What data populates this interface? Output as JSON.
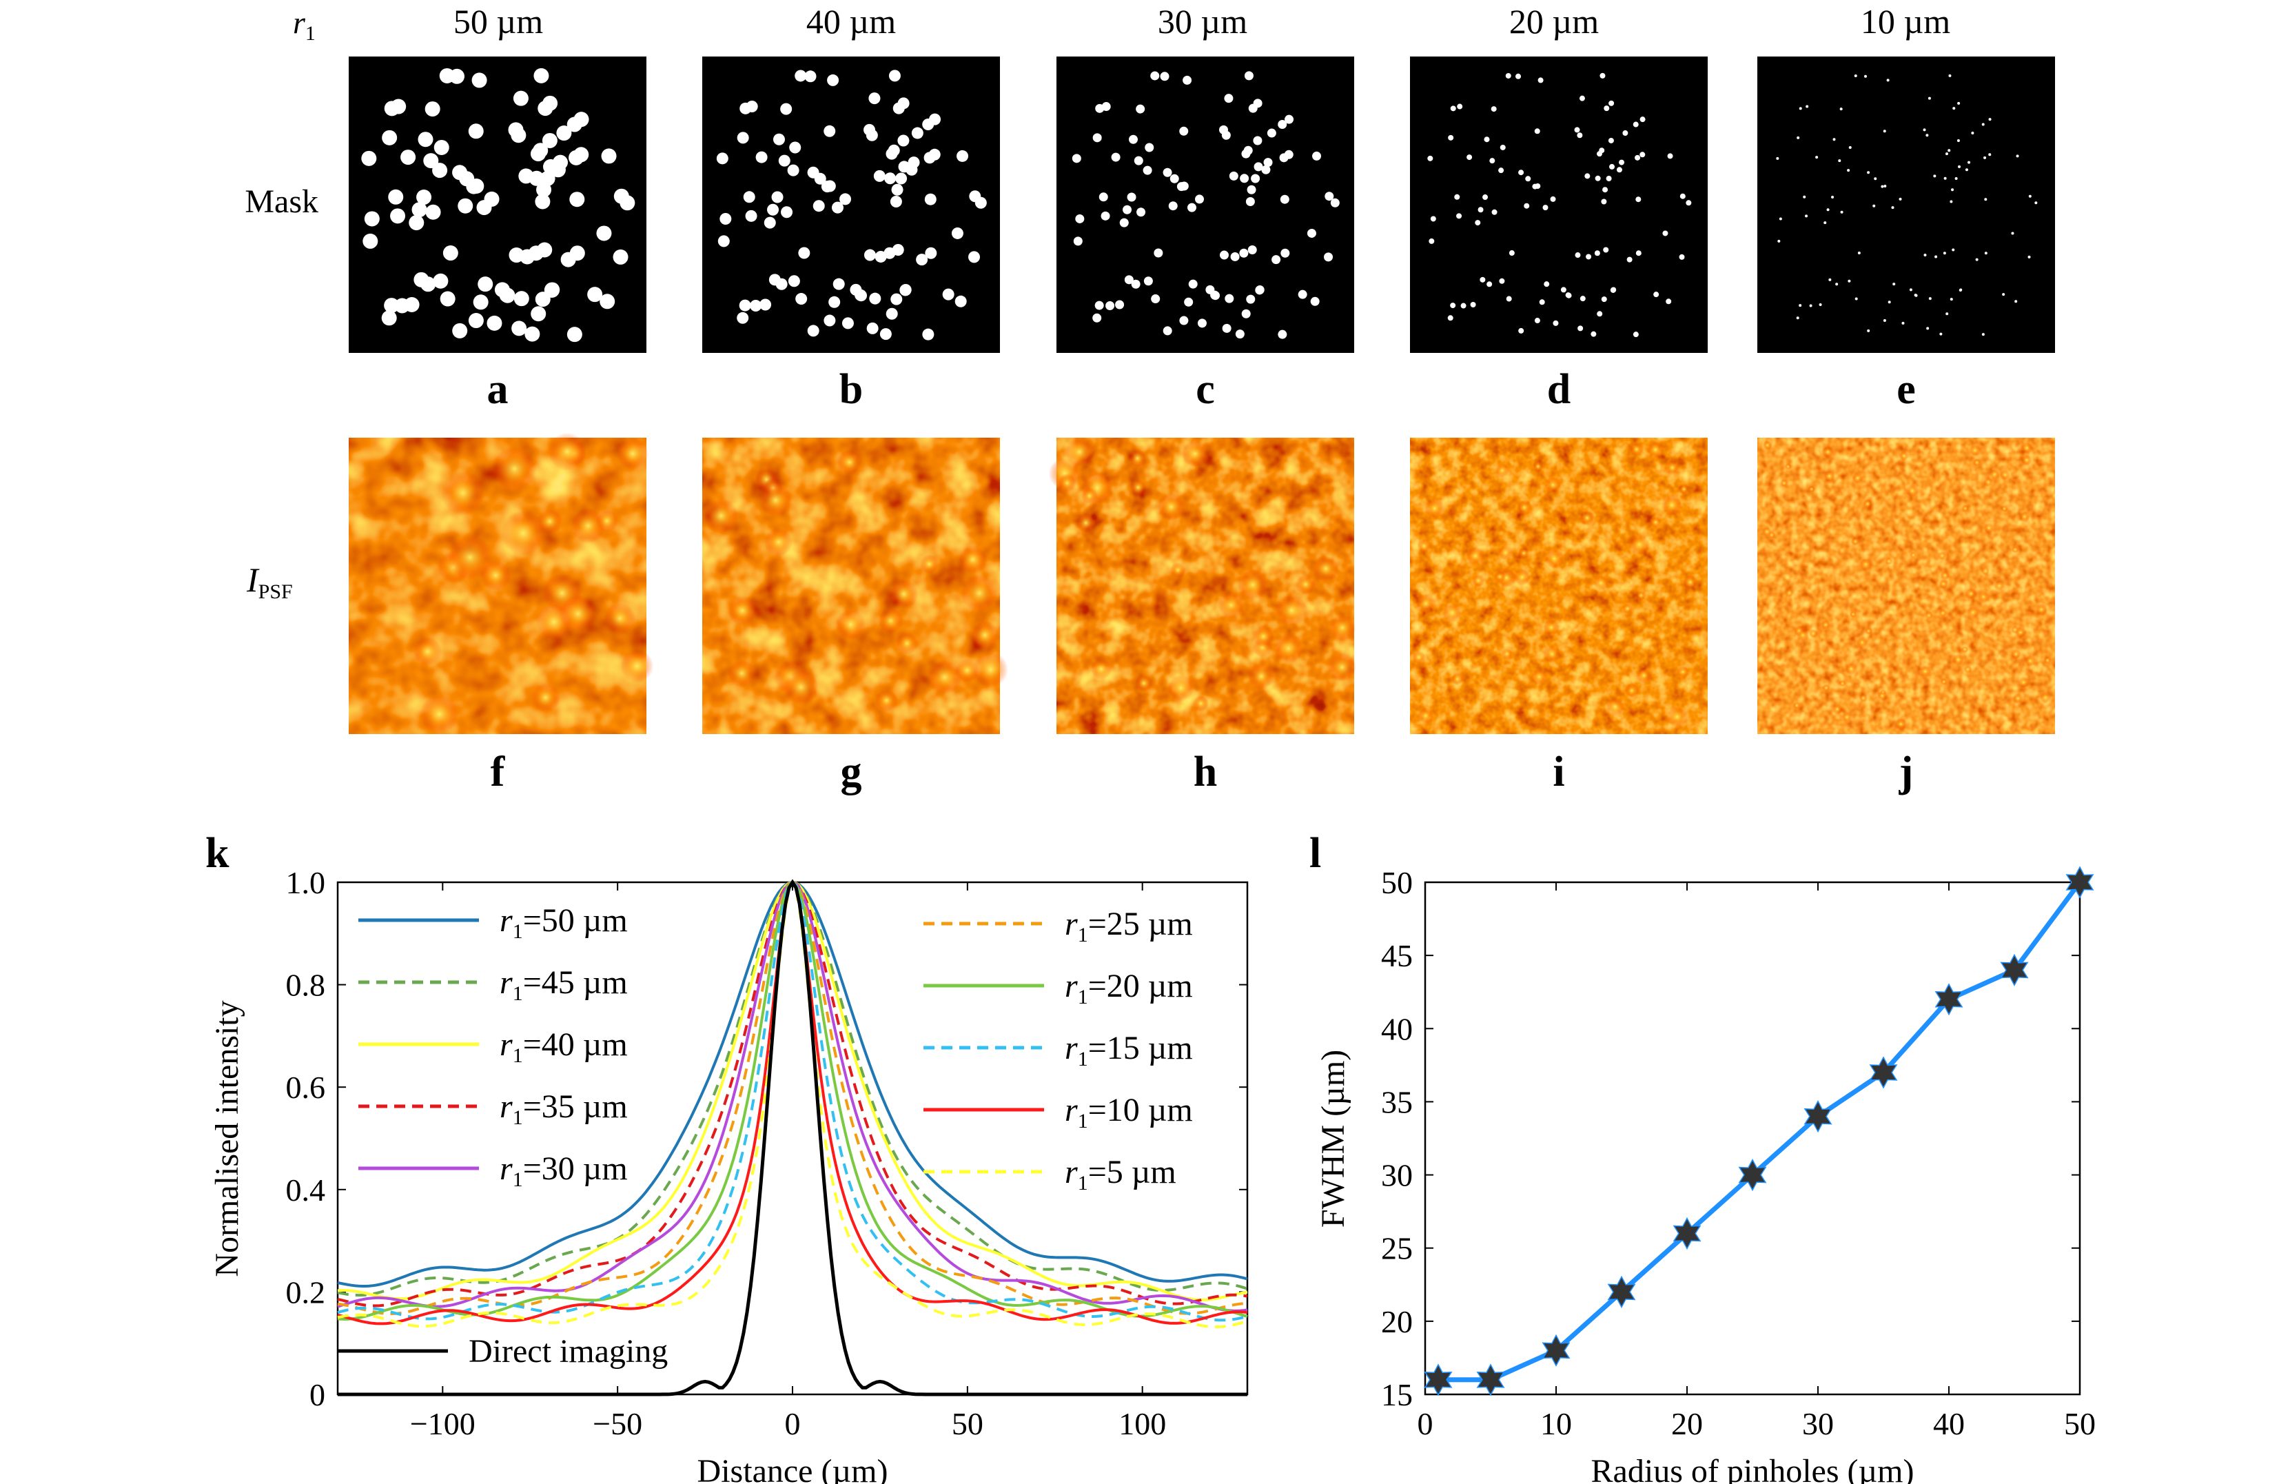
{
  "header": {
    "r_symbol": "r",
    "r_sub": "1"
  },
  "columns": [
    "50 µm",
    "40 µm",
    "30 µm",
    "20 µm",
    "10 µm"
  ],
  "row_labels": {
    "mask": "Mask",
    "psf_main": "I",
    "psf_sub": "PSF"
  },
  "panel_letters": [
    "a",
    "b",
    "c",
    "d",
    "e",
    "f",
    "g",
    "h",
    "i",
    "j",
    "k",
    "l"
  ],
  "colors": {
    "r50": "#1f77b4",
    "r45": "#6aa84f",
    "r40": "#ffff33",
    "r35": "#e31a1c",
    "r30": "#b44bdc",
    "r25": "#f39c12",
    "r20": "#7ac943",
    "r15": "#33c0f0",
    "r10": "#ff1a1a",
    "r5": "#ffff33",
    "direct": "#000000",
    "fwhm_line": "#1e90ff",
    "fwhm_marker": "#333333",
    "psf_low": "#000000",
    "psf_mid": "#c81e00",
    "psf_high": "#fff060"
  },
  "chart_data": [
    {
      "type": "line",
      "panel": "k",
      "xlabel": "Distance (µm)",
      "ylabel": "Normalised intensity",
      "xlim": [
        -130,
        130
      ],
      "ylim": [
        0,
        1.0
      ],
      "xticks": [
        "−100",
        "−50",
        "0",
        "50",
        "100"
      ],
      "xtick_values": [
        -100,
        -50,
        0,
        50,
        100
      ],
      "yticks": [
        "0",
        "0.2",
        "0.4",
        "0.6",
        "0.8",
        "1.0"
      ],
      "ytick_values": [
        0,
        0.2,
        0.4,
        0.6,
        0.8,
        1.0
      ],
      "legend_placement": "top",
      "series": [
        {
          "name": "r1=50 µm",
          "legend_text": "=50 µm",
          "color_key": "r50",
          "dash": "solid",
          "baseline": 0.19,
          "fwhm": 50
        },
        {
          "name": "r1=45 µm",
          "legend_text": "=45 µm",
          "color_key": "r45",
          "dash": "dashed",
          "baseline": 0.18,
          "fwhm": 44
        },
        {
          "name": "r1=40 µm",
          "legend_text": "=40 µm",
          "color_key": "r40",
          "dash": "solid",
          "baseline": 0.17,
          "fwhm": 42
        },
        {
          "name": "r1=35 µm",
          "legend_text": "=35 µm",
          "color_key": "r35",
          "dash": "dashed",
          "baseline": 0.165,
          "fwhm": 37
        },
        {
          "name": "r1=30 µm",
          "legend_text": "=30 µm",
          "color_key": "r30",
          "dash": "solid",
          "baseline": 0.16,
          "fwhm": 34
        },
        {
          "name": "r1=25 µm",
          "legend_text": "=25 µm",
          "color_key": "r25",
          "dash": "dashed",
          "baseline": 0.155,
          "fwhm": 30
        },
        {
          "name": "r1=20 µm",
          "legend_text": "=20 µm",
          "color_key": "r20",
          "dash": "solid",
          "baseline": 0.15,
          "fwhm": 26
        },
        {
          "name": "r1=15 µm",
          "legend_text": "=15 µm",
          "color_key": "r15",
          "dash": "dashed",
          "baseline": 0.15,
          "fwhm": 22
        },
        {
          "name": "r1=10 µm",
          "legend_text": "=10 µm",
          "color_key": "r10",
          "dash": "solid",
          "baseline": 0.145,
          "fwhm": 18
        },
        {
          "name": "r1=5 µm",
          "legend_text": "=5 µm",
          "color_key": "r5",
          "dash": "dashed",
          "baseline": 0.14,
          "fwhm": 16
        },
        {
          "name": "Direct imaging",
          "legend_text": "Direct imaging",
          "color_key": "direct",
          "dash": "solid",
          "baseline": 0.0,
          "fwhm": 16
        }
      ]
    },
    {
      "type": "line",
      "panel": "l",
      "xlabel": "Radius of pinholes (µm)",
      "ylabel": "FWHM (µm)",
      "xlim": [
        0,
        50
      ],
      "ylim": [
        15,
        50
      ],
      "xticks": [
        "0",
        "10",
        "20",
        "30",
        "40",
        "50"
      ],
      "xtick_values": [
        0,
        10,
        20,
        30,
        40,
        50
      ],
      "yticks": [
        "15",
        "20",
        "25",
        "30",
        "35",
        "40",
        "45",
        "50"
      ],
      "ytick_values": [
        15,
        20,
        25,
        30,
        35,
        40,
        45,
        50
      ],
      "x": [
        1,
        5,
        10,
        15,
        20,
        25,
        30,
        35,
        40,
        45,
        50
      ],
      "values": [
        16,
        16,
        18,
        22,
        26,
        30,
        34,
        37,
        42,
        44,
        50
      ]
    }
  ]
}
